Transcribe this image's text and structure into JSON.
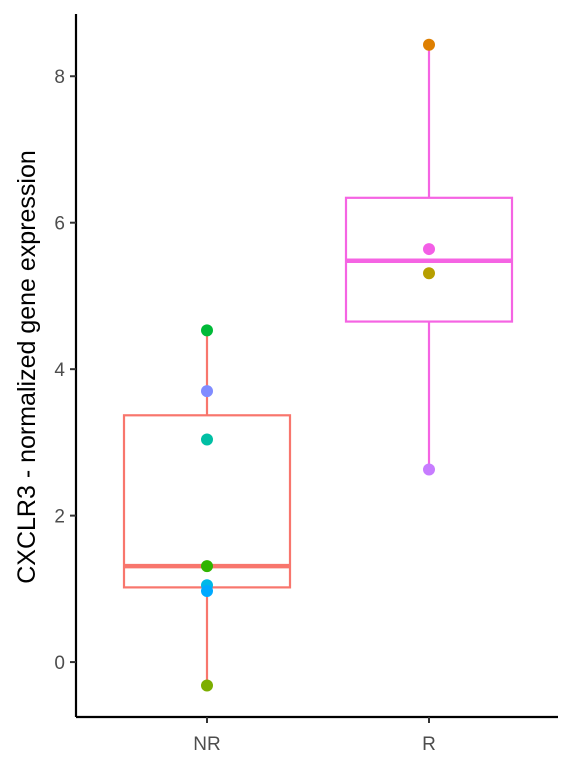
{
  "chart_data": {
    "type": "box",
    "ylabel": "CXCLR3 - normalized gene expression",
    "xlabel": "",
    "categories": [
      "NR",
      "R"
    ],
    "ylim": [
      -0.75,
      8.85
    ],
    "yticks": [
      0,
      2,
      4,
      6,
      8
    ],
    "grid": false,
    "legend": "none",
    "boxes": [
      {
        "category": "NR",
        "color": "#F8766D",
        "whisker_low": -0.32,
        "q1": 1.02,
        "median": 1.31,
        "q3": 3.37,
        "whisker_high": 4.53
      },
      {
        "category": "R",
        "color": "#F564E3",
        "whisker_low": 2.63,
        "q1": 4.65,
        "median": 5.48,
        "q3": 6.34,
        "whisker_high": 8.43
      }
    ],
    "points": [
      {
        "category": "NR",
        "y": 4.53,
        "color": "#00BA38"
      },
      {
        "category": "NR",
        "y": 3.7,
        "color": "#808CFF"
      },
      {
        "category": "NR",
        "y": 3.04,
        "color": "#00BFA4"
      },
      {
        "category": "NR",
        "y": 1.31,
        "color": "#30B400"
      },
      {
        "category": "NR",
        "y": 1.05,
        "color": "#00B8E7"
      },
      {
        "category": "NR",
        "y": 0.97,
        "color": "#00A9FF"
      },
      {
        "category": "NR",
        "y": -0.32,
        "color": "#7CAE00"
      },
      {
        "category": "R",
        "y": 8.43,
        "color": "#DE7F00"
      },
      {
        "category": "R",
        "y": 5.64,
        "color": "#F35EE6"
      },
      {
        "category": "R",
        "y": 5.31,
        "color": "#B79F00"
      },
      {
        "category": "R",
        "y": 2.63,
        "color": "#C77CFF"
      }
    ]
  }
}
